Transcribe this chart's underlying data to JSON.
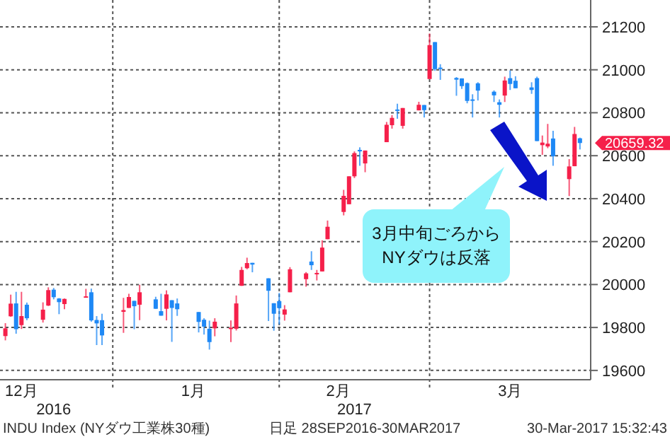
{
  "chart_data": {
    "type": "candlestick",
    "x": [
      "2016-12-12",
      "2016-12-13",
      "2016-12-14",
      "2016-12-15",
      "2016-12-16",
      "2016-12-19",
      "2016-12-20",
      "2016-12-21",
      "2016-12-22",
      "2016-12-23",
      "2016-12-27",
      "2016-12-28",
      "2016-12-29",
      "2016-12-30",
      "2017-01-03",
      "2017-01-04",
      "2017-01-05",
      "2017-01-06",
      "2017-01-09",
      "2017-01-10",
      "2017-01-11",
      "2017-01-12",
      "2017-01-13",
      "2017-01-17",
      "2017-01-18",
      "2017-01-19",
      "2017-01-20",
      "2017-01-23",
      "2017-01-24",
      "2017-01-25",
      "2017-01-26",
      "2017-01-27",
      "2017-01-30",
      "2017-01-31",
      "2017-02-01",
      "2017-02-02",
      "2017-02-03",
      "2017-02-06",
      "2017-02-07",
      "2017-02-08",
      "2017-02-09",
      "2017-02-10",
      "2017-02-13",
      "2017-02-14",
      "2017-02-15",
      "2017-02-16",
      "2017-02-17",
      "2017-02-21",
      "2017-02-22",
      "2017-02-23",
      "2017-02-24",
      "2017-02-27",
      "2017-02-28",
      "2017-03-01",
      "2017-03-02",
      "2017-03-03",
      "2017-03-06",
      "2017-03-07",
      "2017-03-08",
      "2017-03-09",
      "2017-03-10",
      "2017-03-13",
      "2017-03-14",
      "2017-03-15",
      "2017-03-16",
      "2017-03-17",
      "2017-03-20",
      "2017-03-21",
      "2017-03-22",
      "2017-03-23",
      "2017-03-24",
      "2017-03-27",
      "2017-03-28",
      "2017-03-29"
    ],
    "ohlc": [
      [
        19760,
        19820,
        19740,
        19796
      ],
      [
        19852,
        19953,
        19850,
        19911
      ],
      [
        19912,
        19966,
        19771,
        19792
      ],
      [
        19811,
        19966,
        19793,
        19853
      ],
      [
        19906,
        19916,
        19834,
        19843
      ],
      [
        19836,
        19917,
        19823,
        19883
      ],
      [
        19902,
        19987,
        19900,
        19974
      ],
      [
        19976,
        19984,
        19931,
        19941
      ],
      [
        19935,
        19937,
        19862,
        19918
      ],
      [
        19909,
        19935,
        19885,
        19933
      ],
      [
        19943,
        19980,
        19939,
        19945
      ],
      [
        19964,
        19981,
        19827,
        19833
      ],
      [
        19835,
        19853,
        19718,
        19819
      ],
      [
        19834,
        19864,
        19718,
        19763
      ],
      [
        19873,
        19938,
        19775,
        19881
      ],
      [
        19891,
        19957,
        19891,
        19942
      ],
      [
        19924,
        19924,
        19792,
        19899
      ],
      [
        19906,
        19999,
        19834,
        19964
      ],
      [
        19931,
        19943,
        19887,
        19887
      ],
      [
        19876,
        19957,
        19855,
        19855
      ],
      [
        19887,
        19973,
        19833,
        19954
      ],
      [
        19927,
        19927,
        19733,
        19891
      ],
      [
        19912,
        19935,
        19854,
        19885
      ],
      [
        19872,
        19872,
        19777,
        19826
      ],
      [
        19836,
        19843,
        19767,
        19804
      ],
      [
        19794,
        19832,
        19697,
        19732
      ],
      [
        19796,
        19843,
        19759,
        19827
      ],
      [
        19794,
        19833,
        19732,
        19799
      ],
      [
        19794,
        19949,
        19786,
        19912
      ],
      [
        19994,
        20082,
        19994,
        20068
      ],
      [
        20076,
        20125,
        20071,
        20100
      ],
      [
        20101,
        20101,
        20057,
        20093
      ],
      [
        20029,
        20029,
        19830,
        19971
      ],
      [
        19913,
        19913,
        19785,
        19864
      ],
      [
        19923,
        19961,
        19814,
        19890
      ],
      [
        19860,
        19904,
        19832,
        19884
      ],
      [
        19964,
        20081,
        19964,
        20071
      ],
      [
        20025,
        20058,
        19990,
        20052
      ],
      [
        20107,
        20155,
        20068,
        20090
      ],
      [
        20049,
        20068,
        20019,
        20054
      ],
      [
        20061,
        20206,
        20061,
        20172
      ],
      [
        20211,
        20298,
        20211,
        20269
      ],
      [
        20338,
        20441,
        20322,
        20413
      ],
      [
        20374,
        20504,
        20374,
        20504
      ],
      [
        20504,
        20620,
        20496,
        20612
      ],
      [
        20627,
        20639,
        20553,
        20620
      ],
      [
        20564,
        20624,
        20523,
        20624
      ],
      [
        20663,
        20757,
        20663,
        20744
      ],
      [
        20742,
        20789,
        20726,
        20776
      ],
      [
        20815,
        20842,
        20772,
        20811
      ],
      [
        20739,
        20822,
        20726,
        20822
      ],
      [
        20811,
        20851,
        20811,
        20837
      ],
      [
        20836,
        20836,
        20778,
        20812
      ],
      [
        20957,
        21169,
        20957,
        21115
      ],
      [
        21129,
        21129,
        20995,
        21003
      ],
      [
        21010,
        21026,
        20953,
        21006
      ],
      [
        20962,
        20966,
        20879,
        20954
      ],
      [
        20960,
        20960,
        20911,
        20924
      ],
      [
        20938,
        20941,
        20844,
        20855
      ],
      [
        20862,
        20886,
        20778,
        20858
      ],
      [
        20937,
        20942,
        20857,
        20903
      ],
      [
        20898,
        20904,
        20850,
        20881
      ],
      [
        20849,
        20862,
        20778,
        20837
      ],
      [
        20880,
        20968,
        20850,
        20950
      ],
      [
        20961,
        20997,
        20906,
        20934
      ],
      [
        20949,
        20970,
        20914,
        20914
      ],
      [
        20918,
        20942,
        20888,
        20906
      ],
      [
        20961,
        20968,
        20668,
        20668
      ],
      [
        20649,
        20694,
        20604,
        20661
      ],
      [
        20643,
        20748,
        20635,
        20656
      ],
      [
        20680,
        20716,
        20553,
        20597
      ],
      [
        20491,
        20584,
        20412,
        20550
      ],
      [
        20551,
        20734,
        20551,
        20701
      ],
      [
        20681,
        20684,
        20629,
        20659
      ]
    ],
    "colors": [
      "#f5204a",
      "#f5204a",
      "#1e88f5",
      "#f5204a",
      "#1e88f5",
      "#f5204a",
      "#f5204a",
      "#1e88f5",
      "#1e88f5",
      "#f5204a",
      "#f5204a",
      "#1e88f5",
      "#1e88f5",
      "#1e88f5",
      "#f5204a",
      "#f5204a",
      "#1e88f5",
      "#f5204a",
      "#1e88f5",
      "#1e88f5",
      "#f5204a",
      "#1e88f5",
      "#1e88f5",
      "#1e88f5",
      "#1e88f5",
      "#1e88f5",
      "#f5204a",
      "#f5204a",
      "#f5204a",
      "#f5204a",
      "#f5204a",
      "#1e88f5",
      "#1e88f5",
      "#1e88f5",
      "#1e88f5",
      "#f5204a",
      "#f5204a",
      "#f5204a",
      "#1e88f5",
      "#f5204a",
      "#f5204a",
      "#f5204a",
      "#f5204a",
      "#f5204a",
      "#f5204a",
      "#1e88f5",
      "#f5204a",
      "#f5204a",
      "#f5204a",
      "#1e88f5",
      "#f5204a",
      "#f5204a",
      "#1e88f5",
      "#f5204a",
      "#1e88f5",
      "#1e88f5",
      "#1e88f5",
      "#1e88f5",
      "#1e88f5",
      "#1e88f5",
      "#1e88f5",
      "#1e88f5",
      "#1e88f5",
      "#f5204a",
      "#1e88f5",
      "#1e88f5",
      "#1e88f5",
      "#1e88f5",
      "#f5204a",
      "#f5204a",
      "#1e88f5",
      "#f5204a",
      "#f5204a",
      "#1e88f5"
    ],
    "xlim": [
      "2016-12-11",
      "2017-03-31"
    ],
    "xticks": [
      {
        "value": "2016-12-15",
        "label": "12月"
      },
      {
        "value": "2017-01-16",
        "label": "1月"
      },
      {
        "value": "2017-02-12",
        "label": "2月"
      },
      {
        "value": "2017-03-16",
        "label": "3月"
      }
    ],
    "x2lim": [
      "2016-12-11",
      "2017-03-31"
    ],
    "x2ticks": [
      {
        "value": "2016-12-21",
        "label": "2016"
      },
      {
        "value": "2017-02-15",
        "label": "2017"
      }
    ],
    "ylim": [
      19560,
      21325
    ],
    "yticks": [
      19600,
      19800,
      20000,
      20200,
      20400,
      20600,
      20800,
      21000,
      21200
    ],
    "grid": "y",
    "ref_lines": [
      {
        "axis": "x",
        "value": "2017-01-01",
        "color": "#555555",
        "line_style": "dotted"
      },
      {
        "axis": "x",
        "value": "2017-02-01T00:00",
        "color": "#555555",
        "line_style": "dotted"
      },
      {
        "axis": "x",
        "value": "2017-03-01",
        "color": "#555555",
        "line_style": "dotted"
      }
    ],
    "annotations": [
      "3月中旬ごろから\nNYダウは反落",
      {
        "text": "20659.32",
        "x": "2017-03-29",
        "y": 20659.32
      },
      "INDU Index (NYダウ工業株30種)",
      "日足 28SEP2016-30MAR2017",
      "30-Mar-2017 15:32:43"
    ]
  }
}
